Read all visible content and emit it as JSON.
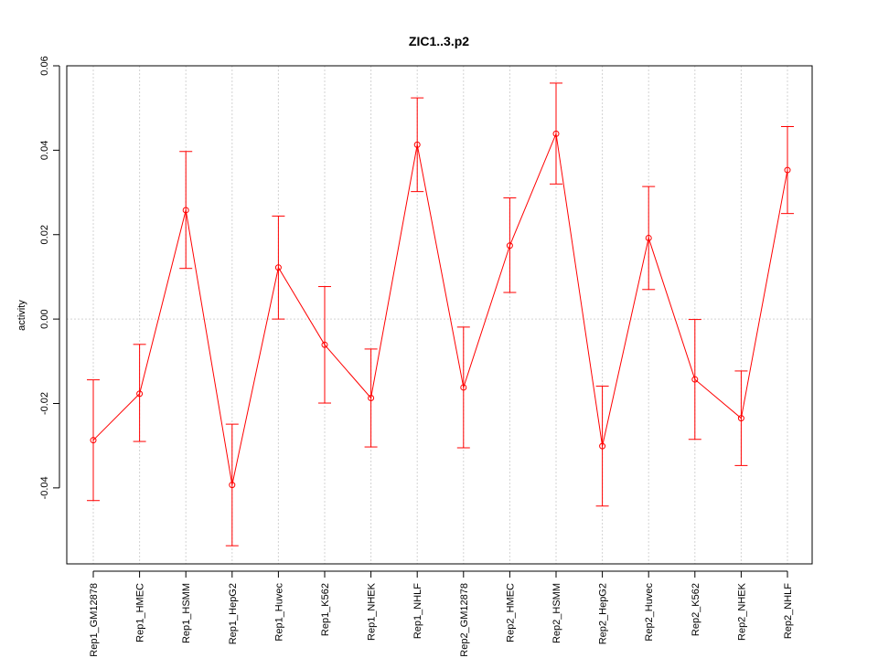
{
  "chart_data": {
    "type": "line",
    "title": "ZIC1..3.p2",
    "xlabel": "",
    "ylabel": "activity",
    "ylim": [
      -0.058,
      0.06
    ],
    "yticks": [
      -0.04,
      -0.02,
      0.0,
      0.02,
      0.04,
      0.06
    ],
    "ytick_labels": [
      "-0.04",
      "-0.02",
      "0.00",
      "0.02",
      "0.04",
      "0.06"
    ],
    "grid": true,
    "series_color": "#ff0000",
    "grid_color": "#d3d3d3",
    "categories": [
      "Rep1_GM12878",
      "Rep1_HMEC",
      "Rep1_HSMM",
      "Rep1_HepG2",
      "Rep1_Huvec",
      "Rep1_K562",
      "Rep1_NHEK",
      "Rep1_NHLF",
      "Rep2_GM12878",
      "Rep2_HMEC",
      "Rep2_HSMM",
      "Rep2_HepG2",
      "Rep2_Huvec",
      "Rep2_K562",
      "Rep2_NHEK",
      "Rep2_NHLF"
    ],
    "values": [
      -0.0287,
      -0.0177,
      0.0258,
      -0.0393,
      0.0122,
      -0.0061,
      -0.0187,
      0.0413,
      -0.0162,
      0.0174,
      0.0439,
      -0.0301,
      0.0192,
      -0.0143,
      -0.0235,
      0.0353
    ],
    "err_low": [
      -0.043,
      -0.029,
      0.012,
      -0.0537,
      0.0,
      -0.0199,
      -0.0303,
      0.0302,
      -0.0305,
      0.0063,
      0.032,
      -0.0443,
      0.007,
      -0.0285,
      -0.0347,
      0.025
    ],
    "err_high": [
      -0.0144,
      -0.006,
      0.0397,
      -0.0249,
      0.0244,
      0.0077,
      -0.0071,
      0.0524,
      -0.0019,
      0.0287,
      0.0559,
      -0.0159,
      0.0314,
      -0.0001,
      -0.0123,
      0.0456
    ]
  }
}
